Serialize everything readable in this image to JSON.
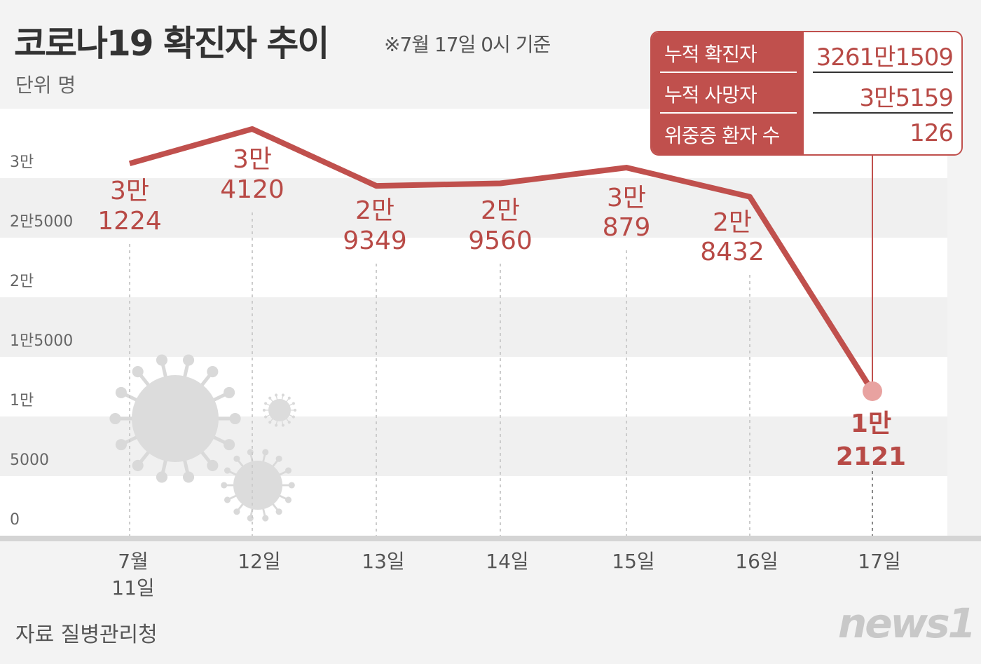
{
  "header": {
    "title": "코로나19 확진자 추이",
    "as_of": "※7월 17일 0시 기준",
    "unit": "단위 명"
  },
  "info_box": {
    "rows": [
      {
        "label": "누적 확진자",
        "value": "3261만1509"
      },
      {
        "label": "누적 사망자",
        "value": "3만5159"
      },
      {
        "label": "위중증 환자 수",
        "value": "126"
      }
    ]
  },
  "footer": {
    "source": "자료 질병관리청",
    "logo": "news1"
  },
  "colors": {
    "line": "#c0504d",
    "label": "#b84a46",
    "band": "#f0f0f0"
  },
  "chart_data": {
    "type": "line",
    "title": "코로나19 확진자 추이",
    "ylabel": "단위 명",
    "ylim": [
      0,
      35000
    ],
    "y_ticks": [
      0,
      5000,
      10000,
      15000,
      20000,
      25000,
      30000
    ],
    "y_tick_labels": [
      "0",
      "5000",
      "1만",
      "1만5000",
      "2만",
      "2만5000",
      "3만"
    ],
    "categories": [
      "7월 11일",
      "12일",
      "13일",
      "14일",
      "15일",
      "16일",
      "17일"
    ],
    "values": [
      31224,
      34120,
      29349,
      29560,
      30879,
      28432,
      12121
    ],
    "data_labels": [
      [
        "3만",
        "1224"
      ],
      [
        "3만",
        "4120"
      ],
      [
        "2만",
        "9349"
      ],
      [
        "2만",
        "9560"
      ],
      [
        "3만",
        "879"
      ],
      [
        "2만",
        "8432"
      ],
      [
        "1만",
        "2121"
      ]
    ],
    "grid": "alternating bands",
    "legend": "none"
  }
}
